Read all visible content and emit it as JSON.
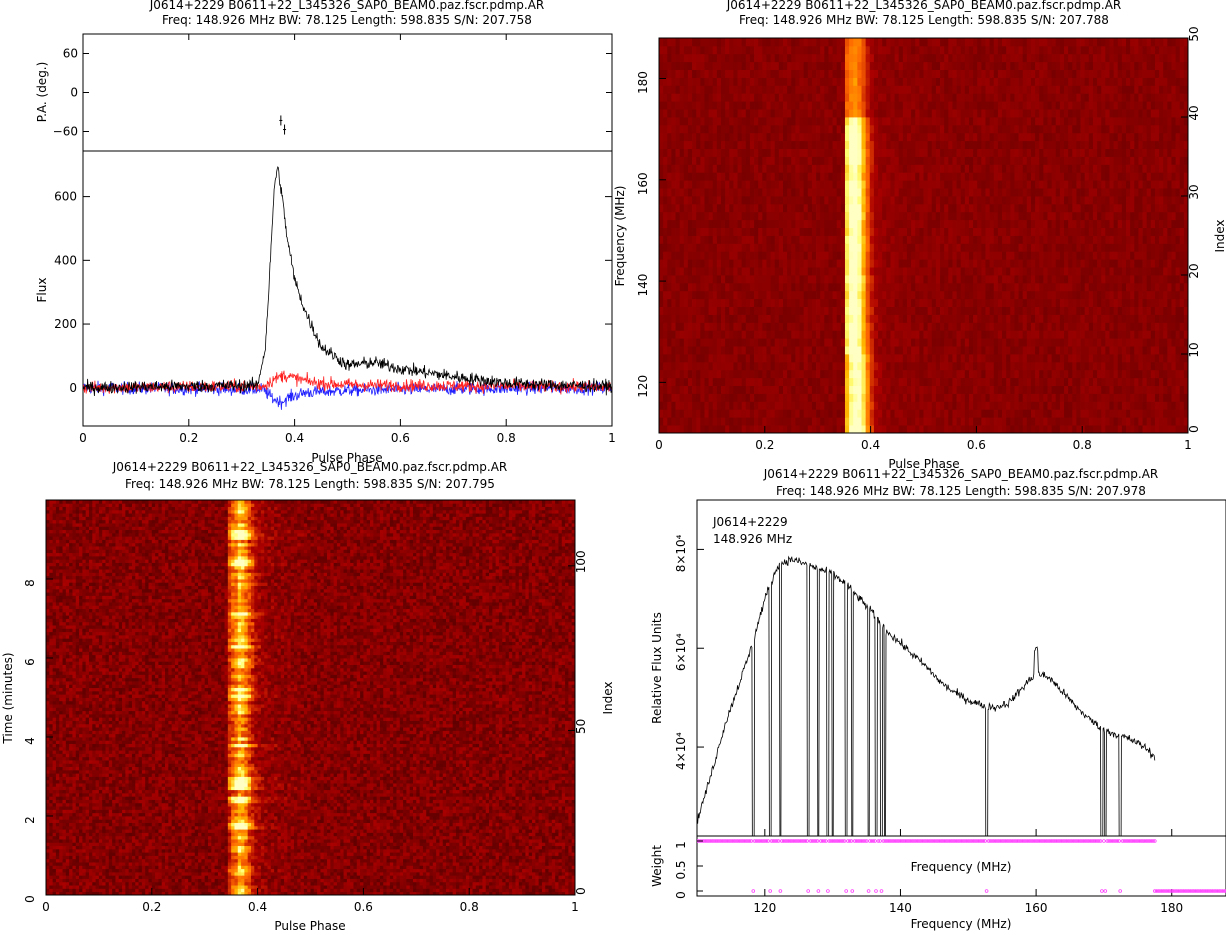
{
  "titles": {
    "p1_line1": "J0614+2229  B0611+22_L345326_SAP0_BEAM0.paz.fscr.pdmp.AR",
    "p1_line2": "Freq:  148.926  MHz  BW:  78.125  Length:  598.835  S/N:  207.758",
    "p2_line1": "J0614+2229  B0611+22_L345326_SAP0_BEAM0.paz.fscr.pdmp.AR",
    "p2_line2": "Freq:  148.926  MHz  BW:  78.125  Length:  598.835  S/N:  207.788",
    "p3_line1": "J0614+2229  B0611+22_L345326_SAP0_BEAM0.paz.fscr.pdmp.AR",
    "p3_line2": "Freq:  148.926  MHz  BW:  78.125  Length:  598.835  S/N:  207.795",
    "p4_line1": "J0614+2229  B0611+22_L345326_SAP0_BEAM0.paz.fscr.pdmp.AR",
    "p4_line2": "Freq:  148.926  MHz  BW:  78.125  Length:  598.835  S/N:  207.978"
  },
  "chart_data": [
    {
      "type": "line",
      "panel": "profile-pa",
      "ylabel": "P.A. (deg.)",
      "ylim": [
        -90,
        90
      ],
      "yticks": [
        "60",
        "0",
        "−60"
      ],
      "points": [
        {
          "x": 0.374,
          "y": -43
        },
        {
          "x": 0.381,
          "y": -57
        }
      ]
    },
    {
      "type": "line",
      "panel": "profile-flux",
      "xlabel": "Pulse Phase",
      "ylabel": "Flux",
      "xlim": [
        0,
        1
      ],
      "ylim": [
        -120,
        740
      ],
      "xticks": [
        "0",
        "0.2",
        "0.4",
        "0.6",
        "0.8",
        "1"
      ],
      "yticks": [
        "0",
        "200",
        "400",
        "600"
      ],
      "colors": {
        "total": "#000000",
        "linear": "#ff2020",
        "circular": "#2020ff"
      },
      "series": [
        {
          "color": "#000000",
          "x": [
            0,
            0.33,
            0.345,
            0.355,
            0.362,
            0.368,
            0.375,
            0.385,
            0.4,
            0.42,
            0.45,
            0.5,
            0.55,
            0.6,
            0.7,
            0.8,
            0.9,
            1.0
          ],
          "values": [
            0,
            8,
            130,
            420,
            640,
            690,
            620,
            480,
            340,
            240,
            130,
            70,
            80,
            60,
            35,
            15,
            8,
            5
          ]
        },
        {
          "color": "#ff2020",
          "x": [
            0,
            0.34,
            0.36,
            0.38,
            0.4,
            0.44,
            0.5,
            0.55,
            1.0
          ],
          "values": [
            0,
            5,
            25,
            40,
            30,
            15,
            10,
            8,
            2
          ]
        },
        {
          "color": "#2020ff",
          "x": [
            0,
            0.34,
            0.36,
            0.375,
            0.39,
            0.42,
            0.5,
            0.6,
            1.0
          ],
          "values": [
            0,
            -5,
            -35,
            -45,
            -30,
            -15,
            -8,
            -5,
            0
          ]
        }
      ]
    },
    {
      "type": "heatmap",
      "panel": "phase-frequency",
      "xlabel": "Pulse Phase",
      "ylabel": "Frequency (MHz)",
      "y2label": "Index",
      "xlim": [
        0,
        1
      ],
      "ylim": [
        110,
        188
      ],
      "y2lim": [
        0,
        50
      ],
      "xticks": [
        "0",
        "0.2",
        "0.4",
        "0.6",
        "0.8",
        "1"
      ],
      "yticks": [
        "120",
        "140",
        "160",
        "180"
      ],
      "y2ticks": [
        "0",
        "10",
        "20",
        "30",
        "40",
        "50"
      ],
      "channels": 50,
      "pulse_center": 0.368,
      "pulse_width": 0.025
    },
    {
      "type": "heatmap",
      "panel": "phase-time",
      "xlabel": "Pulse Phase",
      "ylabel": "Time (minutes)",
      "y2label": "Index",
      "xlim": [
        0,
        1
      ],
      "ylim": [
        0,
        10
      ],
      "y2lim": [
        0,
        120
      ],
      "xticks": [
        "0",
        "0.2",
        "0.4",
        "0.6",
        "0.8",
        "1"
      ],
      "yticks": [
        "0",
        "2",
        "4",
        "6",
        "8"
      ],
      "y2ticks": [
        "0",
        "50",
        "100"
      ],
      "subints": 120,
      "bright_subints": [
        20,
        21,
        28,
        29,
        32,
        33,
        34,
        35,
        45,
        60,
        62,
        75,
        85,
        100,
        101,
        108,
        109,
        110
      ]
    },
    {
      "type": "line",
      "panel": "bandpass",
      "xlabel": "Frequency (MHz)",
      "ylabel": "Relative Flux Units",
      "legend": [
        "J0614+2229",
        "148.926  MHz"
      ],
      "xlim": [
        110,
        188
      ],
      "ylim": [
        22000,
        90000
      ],
      "xticks": [
        "120",
        "140",
        "160",
        "180"
      ],
      "yticks": [
        "4×10⁴",
        "6×10⁴",
        "8×10⁴"
      ],
      "x": [
        110,
        112,
        114,
        116,
        118,
        120,
        122,
        124,
        126,
        128,
        130,
        132,
        134,
        136,
        138,
        140,
        142,
        144,
        146,
        148,
        150,
        152,
        154,
        156,
        158,
        160,
        162,
        164,
        166,
        168,
        170,
        172,
        174,
        176,
        177.5
      ],
      "values": [
        25000,
        34000,
        44000,
        52000,
        60000,
        70000,
        77000,
        78000,
        77000,
        76000,
        75000,
        73000,
        70000,
        67000,
        63500,
        61000,
        58500,
        56000,
        53000,
        51000,
        49500,
        48500,
        48000,
        49000,
        52000,
        55000,
        54000,
        51000,
        48000,
        45500,
        43500,
        42500,
        41500,
        40000,
        38000
      ],
      "zapped_channels_mhz": [
        118.3,
        120.8,
        122.3,
        126.4,
        127.9,
        129.3,
        130,
        132,
        132.9,
        135.3,
        136.4,
        137.2,
        137.7,
        152.7,
        169.7,
        170.2,
        172.4
      ]
    },
    {
      "type": "scatter",
      "panel": "weights",
      "xlabel": "Frequency (MHz)",
      "ylabel": "Weight",
      "xlim": [
        110,
        188
      ],
      "ylim": [
        -0.1,
        1.1
      ],
      "yticks": [
        "0",
        "0.5",
        "1"
      ],
      "color": "#ff40ff",
      "weight1_range_mhz": [
        110,
        177.5
      ],
      "weight0_points_mhz": [
        118.3,
        120.8,
        122.3,
        126.4,
        127.9,
        129.3,
        132,
        132.9,
        135.3,
        136.4,
        137.2,
        152.7,
        169.7,
        170.2,
        172.4
      ],
      "weight0_range_mhz": [
        177.5,
        188
      ]
    }
  ]
}
